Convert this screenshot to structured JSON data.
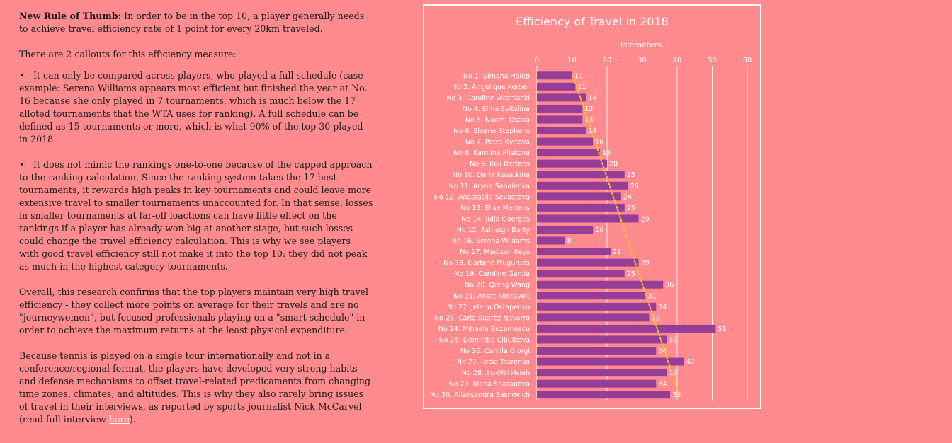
{
  "article": {
    "p1_lead": "New Rule of Thumb:",
    "p1_text": " In order to be in the top 10, a player generally needs to achieve travel efficiency rate of 1 point for every 20km traveled.",
    "p2": "There are 2 callouts for this efficiency measure:",
    "bullet_symbol": "•",
    "bullet1": "It can only be compared across players, who played a full schedule (case example: Serena Williams appears most efficient but finished the year at No. 16 because she only played in 7 tournaments, which is much below the 17 alloted tournaments that the WTA uses for ranking). A full schedule can be defined as 15 tournaments or more, which is what 90% of the top 30 played in 2018.",
    "bullet2": "It does not mimic the rankings one-to-one because of the capped approach to the ranking calculation. Since the ranking system takes the 17 best tournaments, it rewards high peaks in key tournaments and could leave more extensive travel to smaller tournaments unaccounted for. In that sense, losses in smaller tournaments at far-off loactions can have little effect on the rankings if a player has already won big at another stage, but such losses could change the travel efficiency calculation. This is why we see players with good travel efficiency still not make it into the top 10: they did not peak as much in the highest-category tournaments.",
    "p3": "Overall, this research confirms that the top players maintain very high travel efficiency - they collect more points on average for their travels and are no \"journeywomen\", but focused professionals playing on a \"smart schedule\" in order to achieve the maximum returns at the least physical expenditure.",
    "p4": "Because tennis is played on a single tour internationally and not in a conference/regional format, the players have developed very strong habits and defense mechanisms to offset travel-related predicaments from changing time zones, climates, and altitudes. This is why they also rarely bring issues of travel in their interviews, as reported by sports journalist Nick McCarvel (read full interview ",
    "link_text": "here",
    "p4_end": ")."
  },
  "chart_data": {
    "type": "bar",
    "orientation": "horizontal",
    "title": "Efficiency of Travel in 2018",
    "xlabel": "kilometers",
    "xlim": [
      0,
      60
    ],
    "xticks": [
      0,
      10,
      20,
      30,
      40,
      50,
      60
    ],
    "grid": true,
    "categories": [
      "No 1. Simona Halep",
      "No 2. Angelique Kerber",
      "No 3. Caroline Wozniacki",
      "No 4. Elina Svitolina",
      "No 5. Naomi Osaka",
      "No 6. Sloane Stephens",
      "No 7. Petra Kvitova",
      "No 8. Karolina Pliskova",
      "No 9. Kiki Bertens",
      "No 10. Daria Kasatkina",
      "No 11. Aryna Sabalenka",
      "No 12. Anastasija Sevastova",
      "No 13. Elise Mertens",
      "No 14. Julia Goerges",
      "No 15. Ashleigh Barty",
      "No 16. Serena Williams",
      "No 17. Madison Keys",
      "No 18. Garbine Muguruza",
      "No 19. Caroline Garcia",
      "No 20. Qiang Wang",
      "No 21. Anett Kontaveit",
      "No 22. Jelena Ostapenko",
      "No 23. Carla Suarez Navarro",
      "No 24. Mihaela Buzarnescu",
      "No 25. Dominika Cibulkova",
      "No 26. Camila Giorgi",
      "No 27. Lesia Tsurenko",
      "No 28. Su-Wei Hsieh",
      "No 29. Maria Sharapova",
      "No 30. Aliaksandra Sasnovich"
    ],
    "values": [
      10,
      11,
      14,
      13,
      13,
      14,
      16,
      18,
      20,
      25,
      26,
      24,
      25,
      29,
      16,
      8,
      21,
      29,
      25,
      36,
      31,
      34,
      32,
      51,
      37,
      34,
      42,
      37,
      34,
      38
    ],
    "bar_color": "#953d97",
    "trendline": {
      "type": "linear",
      "style": "dotted",
      "color": "#f5c028"
    }
  }
}
